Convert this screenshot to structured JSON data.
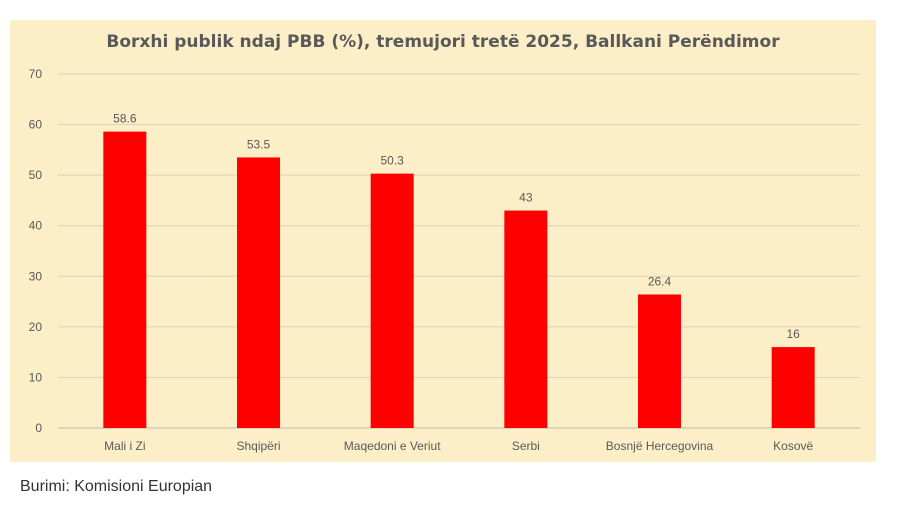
{
  "chart_data": {
    "type": "bar",
    "title": "Borxhi publik ndaj PBB (%), tremujori tretë 2025, Ballkani Perëndimor",
    "xlabel": "",
    "ylabel": "",
    "categories": [
      "Mali i Zi",
      "Shqipëri",
      "Maqedoni e Veriut",
      "Serbi",
      "Bosnjë Hercegovina",
      "Kosovë"
    ],
    "values": [
      58.6,
      53.5,
      50.3,
      43,
      26.4,
      16
    ],
    "data_labels": [
      "58.6",
      "53.5",
      "50.3",
      "43",
      "26.4",
      "16"
    ],
    "ylim": [
      0,
      70
    ],
    "yticks": [
      0,
      10,
      20,
      30,
      40,
      50,
      60,
      70
    ],
    "grid": true,
    "legend": "none",
    "colors": {
      "bar": "#ff0000",
      "background": "#fcefc7",
      "grid": "#d9d2bd",
      "text": "#595959"
    }
  },
  "source": "Burimi: Komisioni Europian"
}
